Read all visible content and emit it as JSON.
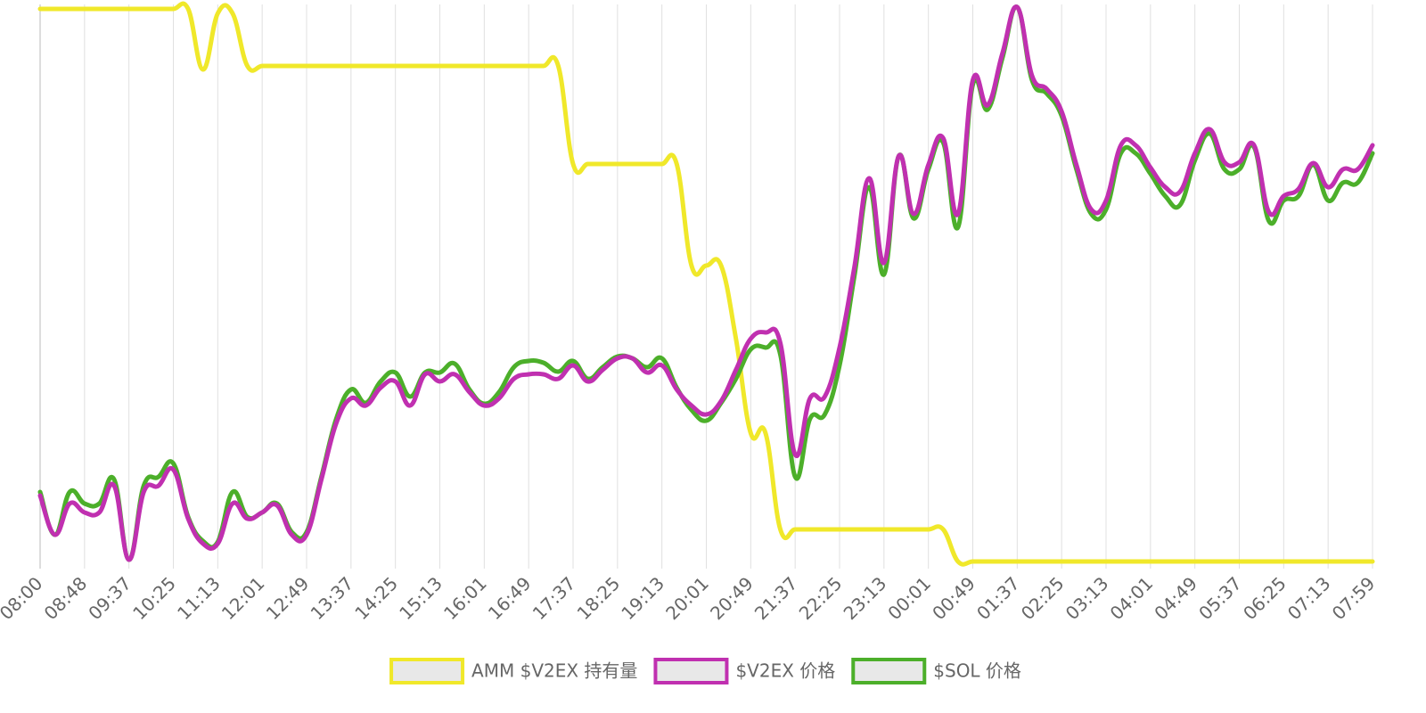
{
  "chart_data": {
    "type": "line",
    "categories": [
      "08:00",
      null,
      null,
      "08:48",
      null,
      null,
      "09:37",
      null,
      null,
      "10:25",
      null,
      null,
      "11:13",
      null,
      null,
      "12:01",
      null,
      null,
      "12:49",
      null,
      null,
      "13:37",
      null,
      null,
      "14:25",
      null,
      null,
      "15:13",
      null,
      null,
      "16:01",
      null,
      null,
      "16:49",
      null,
      null,
      "17:37",
      null,
      null,
      "18:25",
      null,
      null,
      "19:13",
      null,
      null,
      "20:01",
      null,
      null,
      "20:49",
      null,
      null,
      "21:37",
      null,
      null,
      "22:25",
      null,
      null,
      "23:13",
      null,
      null,
      "00:01",
      null,
      null,
      "00:49",
      null,
      null,
      "01:37",
      null,
      null,
      "02:25",
      null,
      null,
      "03:13",
      null,
      null,
      "04:01",
      null,
      null,
      "04:49",
      null,
      null,
      "05:37",
      null,
      null,
      "06:25",
      null,
      null,
      "07:13",
      null,
      null,
      "07:59"
    ],
    "series": [
      {
        "name": "AMM $V2EX 持有量",
        "color": "#f0e82a",
        "values": [
          620,
          620,
          620,
          620,
          620,
          620,
          620,
          620,
          620,
          620,
          620,
          552,
          615,
          615,
          556,
          556,
          556,
          556,
          556,
          556,
          556,
          556,
          556,
          556,
          556,
          556,
          556,
          556,
          556,
          556,
          556,
          556,
          556,
          556,
          556,
          556,
          446,
          446,
          446,
          446,
          446,
          446,
          446,
          446,
          332,
          332,
          332,
          250,
          144,
          144,
          36,
          36,
          36,
          36,
          36,
          36,
          36,
          36,
          36,
          36,
          36,
          36,
          0,
          0,
          0,
          0,
          0,
          0,
          0,
          0,
          0,
          0,
          0,
          0,
          0,
          0,
          0,
          0,
          0,
          0,
          0,
          0,
          0,
          0,
          0,
          0,
          0,
          0,
          0,
          0,
          0
        ]
      },
      {
        "name": "$V2EX 价格",
        "color": "#c030b0",
        "values": [
          74,
          30,
          65,
          55,
          55,
          85,
          2,
          78,
          85,
          103,
          48,
          20,
          20,
          65,
          48,
          55,
          63,
          30,
          30,
          92,
          155,
          183,
          175,
          195,
          202,
          175,
          210,
          202,
          210,
          190,
          175,
          183,
          205,
          210,
          210,
          205,
          220,
          202,
          215,
          228,
          228,
          212,
          220,
          193,
          175,
          165,
          180,
          215,
          250,
          257,
          245,
          120,
          183,
          185,
          240,
          330,
          430,
          335,
          455,
          390,
          445,
          475,
          390,
          540,
          512,
          570,
          622,
          545,
          530,
          505,
          445,
          395,
          405,
          467,
          467,
          442,
          420,
          415,
          458,
          485,
          448,
          448,
          467,
          392,
          410,
          418,
          447,
          420,
          440,
          440,
          467
        ]
      },
      {
        "name": "$SOL 价格",
        "color": "#4caf2a",
        "values": [
          78,
          30,
          78,
          65,
          65,
          92,
          2,
          85,
          95,
          110,
          50,
          23,
          22,
          78,
          50,
          55,
          65,
          33,
          33,
          95,
          160,
          193,
          178,
          202,
          212,
          185,
          212,
          212,
          222,
          193,
          177,
          190,
          218,
          225,
          223,
          213,
          225,
          205,
          218,
          230,
          228,
          218,
          228,
          195,
          170,
          158,
          178,
          205,
          238,
          240,
          232,
          95,
          160,
          165,
          220,
          320,
          420,
          322,
          455,
          385,
          440,
          470,
          375,
          535,
          507,
          565,
          622,
          540,
          525,
          500,
          440,
          390,
          395,
          458,
          458,
          435,
          410,
          400,
          450,
          480,
          440,
          440,
          465,
          382,
          405,
          410,
          445,
          405,
          425,
          425,
          458
        ]
      }
    ],
    "ylim": [
      0,
      625
    ],
    "grid": true,
    "legend": "bottom"
  }
}
